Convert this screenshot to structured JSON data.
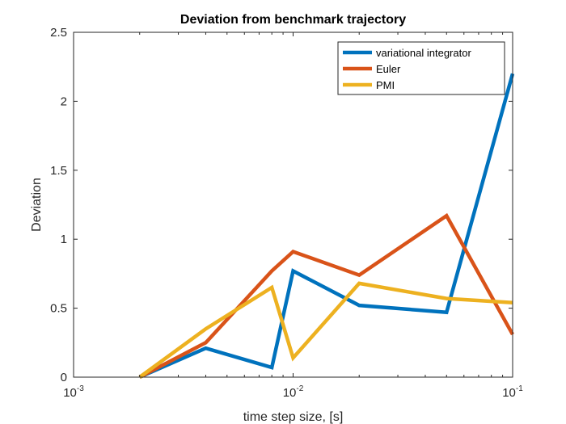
{
  "chart_data": {
    "type": "line",
    "title": "Deviation from benchmark trajectory",
    "xlabel": "time step size, [s]",
    "ylabel": "Deviation",
    "xscale": "log",
    "xlim": [
      0.001,
      0.1
    ],
    "ylim": [
      0,
      2.5
    ],
    "x_ticks": [
      {
        "base": "10",
        "exp": "-3",
        "value": 0.001
      },
      {
        "base": "10",
        "exp": "-2",
        "value": 0.01
      },
      {
        "base": "10",
        "exp": "-1",
        "value": 0.1
      }
    ],
    "y_ticks": [
      "0",
      "0.5",
      "1",
      "1.5",
      "2",
      "2.5"
    ],
    "y_tick_values": [
      0,
      0.5,
      1,
      1.5,
      2,
      2.5
    ],
    "grid": false,
    "legend_position": "top-right",
    "series": [
      {
        "name": "variational integrator",
        "color": "#0072BD",
        "x": [
          0.002,
          0.004,
          0.008,
          0.01,
          0.02,
          0.05,
          0.1
        ],
        "y": [
          0.0,
          0.21,
          0.07,
          0.77,
          0.52,
          0.47,
          2.2
        ]
      },
      {
        "name": "Euler",
        "color": "#D95319",
        "x": [
          0.002,
          0.004,
          0.008,
          0.01,
          0.02,
          0.05,
          0.1
        ],
        "y": [
          0.0,
          0.25,
          0.77,
          0.91,
          0.74,
          1.17,
          0.31
        ]
      },
      {
        "name": "PMI",
        "color": "#EDB120",
        "x": [
          0.002,
          0.004,
          0.008,
          0.01,
          0.02,
          0.05,
          0.1
        ],
        "y": [
          0.0,
          0.35,
          0.65,
          0.14,
          0.68,
          0.57,
          0.54
        ]
      }
    ]
  }
}
